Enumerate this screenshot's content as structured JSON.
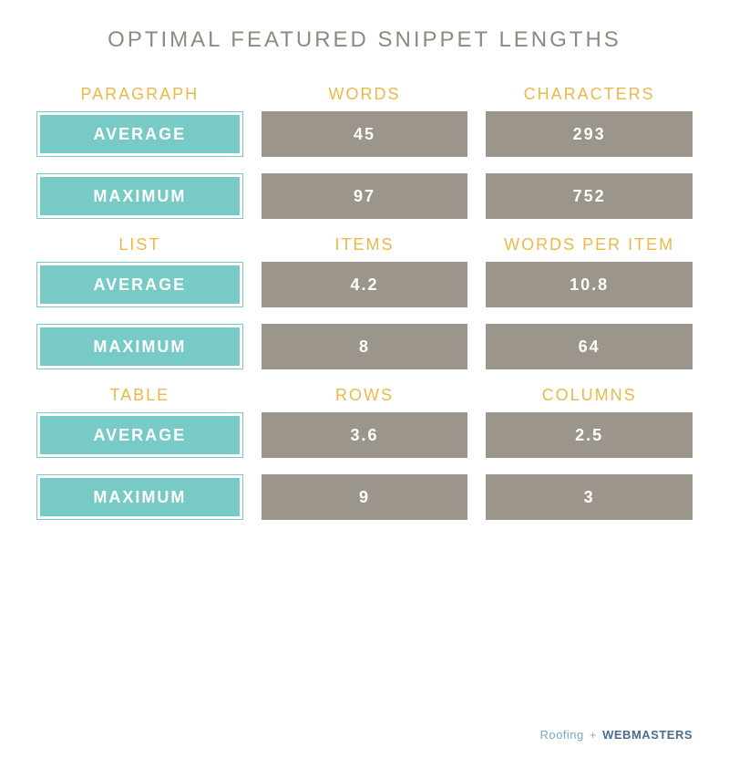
{
  "title": "OPTIMAL FEATURED SNIPPET LENGTHS",
  "colors": {
    "title": "#8d8a82",
    "header": "#e9b949",
    "label_bg": "#78cac7",
    "label_border": "#78cac7",
    "label_text": "#ffffff",
    "value_bg": "#9b958b",
    "value_text": "#ffffff",
    "footer_light": "#7fa8c9",
    "footer_bold": "#4a6e8f"
  },
  "groups": [
    {
      "headers": [
        "PARAGRAPH",
        "WORDS",
        "CHARACTERS"
      ],
      "rows": [
        {
          "label": "AVERAGE",
          "values": [
            "45",
            "293"
          ]
        },
        {
          "label": "MAXIMUM",
          "values": [
            "97",
            "752"
          ]
        }
      ]
    },
    {
      "headers": [
        "LIST",
        "ITEMS",
        "WORDS PER ITEM"
      ],
      "rows": [
        {
          "label": "AVERAGE",
          "values": [
            "4.2",
            "10.8"
          ]
        },
        {
          "label": "MAXIMUM",
          "values": [
            "8",
            "64"
          ]
        }
      ]
    },
    {
      "headers": [
        "TABLE",
        "ROWS",
        "COLUMNS"
      ],
      "rows": [
        {
          "label": "AVERAGE",
          "values": [
            "3.6",
            "2.5"
          ]
        },
        {
          "label": "MAXIMUM",
          "values": [
            "9",
            "3"
          ]
        }
      ]
    }
  ],
  "footer": {
    "part1": "Roofing",
    "plus": "+",
    "part2": "WEBMASTERS"
  }
}
